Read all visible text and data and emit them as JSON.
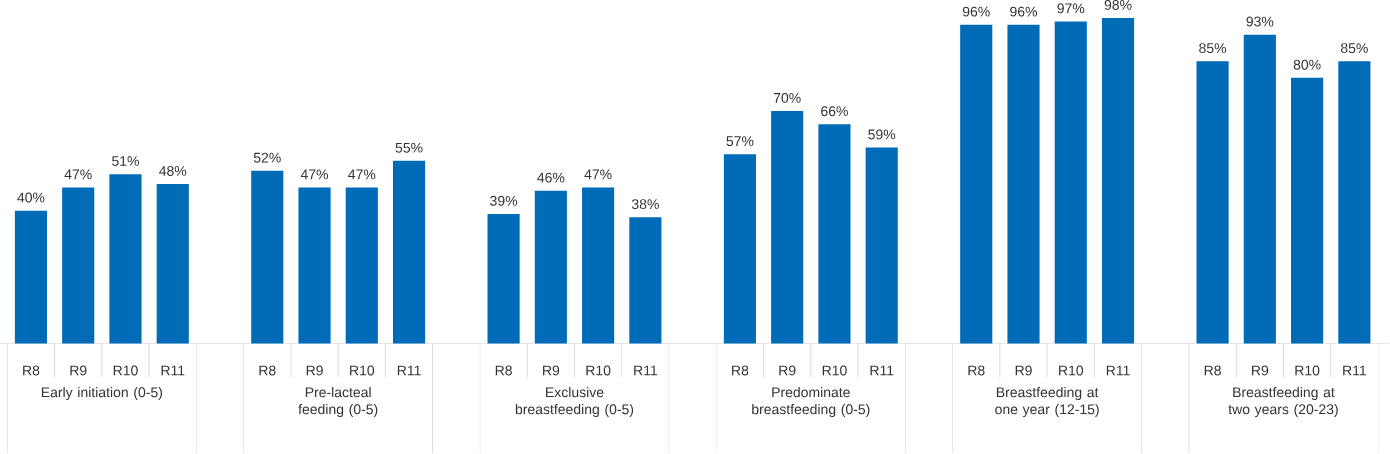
{
  "chart_data": {
    "type": "bar",
    "categories": [
      "Early initiation (0-5)",
      "Pre-lacteal feeding (0-5)",
      "Exclusive breastfeeding (0-5)",
      "Predominate breastfeeding (0-5)",
      "Breastfeeding at one year (12-15)",
      "Breastfeeding at two years (20-23)"
    ],
    "series": [
      {
        "name": "R8",
        "color": "#006bb6",
        "values": [
          40,
          52,
          39,
          57,
          96,
          85
        ],
        "value_labels": [
          "40%",
          "52%",
          "39%",
          "57%",
          "96%",
          "85%"
        ]
      },
      {
        "name": "R9",
        "color": "#006bb6",
        "values": [
          47,
          47,
          46,
          70,
          96,
          93
        ],
        "value_labels": [
          "47%",
          "47%",
          "46%",
          "70%",
          "96%",
          "93%"
        ]
      },
      {
        "name": "R10",
        "color": "#006bb6",
        "values": [
          51,
          47,
          47,
          66,
          97,
          80
        ],
        "value_labels": [
          "51%",
          "47%",
          "47%",
          "66%",
          "97%",
          "80%"
        ]
      },
      {
        "name": "R11",
        "color": "#006bb6",
        "values": [
          48,
          55,
          38,
          59,
          98,
          85
        ],
        "value_labels": [
          "48%",
          "55%",
          "38%",
          "59%",
          "98%",
          "85%"
        ]
      }
    ]
  }
}
